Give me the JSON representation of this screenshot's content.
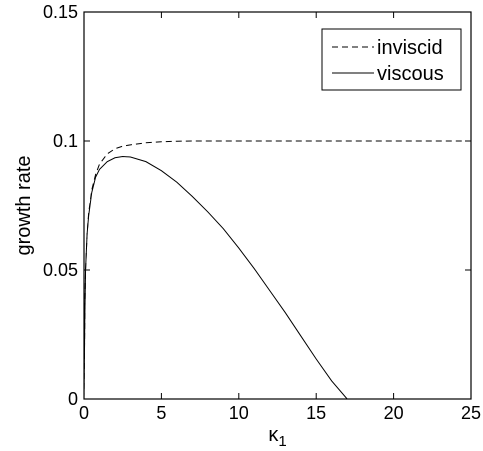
{
  "chart_data": {
    "type": "line",
    "title": "",
    "xlabel": "κ",
    "xlabel_subscript": "1",
    "ylabel": "growth rate",
    "xlim": [
      0,
      25
    ],
    "ylim": [
      0,
      0.15
    ],
    "xticks": [
      0,
      5,
      10,
      15,
      20,
      25
    ],
    "yticks": [
      0,
      0.05,
      0.1,
      0.15
    ],
    "xtick_labels": [
      "0",
      "5",
      "10",
      "15",
      "20",
      "25"
    ],
    "ytick_labels": [
      "0",
      "0.05",
      "0.1",
      "0.15"
    ],
    "grid": false,
    "legend_position": "top-right",
    "series": [
      {
        "name": "inviscid",
        "style": "dashed",
        "color": "#000000",
        "x": [
          0,
          0.05,
          0.1,
          0.2,
          0.3,
          0.5,
          0.75,
          1,
          1.5,
          2,
          2.5,
          3,
          4,
          5,
          6,
          7,
          8,
          10,
          12,
          14,
          16,
          18,
          20,
          22,
          25
        ],
        "y": [
          0,
          0.03,
          0.05,
          0.064,
          0.072,
          0.081,
          0.087,
          0.091,
          0.095,
          0.097,
          0.098,
          0.0985,
          0.0993,
          0.0997,
          0.0999,
          0.1,
          0.1,
          0.1,
          0.1,
          0.1,
          0.1,
          0.1,
          0.1,
          0.1,
          0.1
        ]
      },
      {
        "name": "viscous",
        "style": "solid",
        "color": "#000000",
        "x": [
          0,
          0.05,
          0.1,
          0.2,
          0.3,
          0.5,
          0.75,
          1,
          1.5,
          2,
          2.5,
          3,
          4,
          5,
          6,
          7,
          8,
          9,
          10,
          11,
          12,
          13,
          14,
          15,
          16,
          17,
          17.7
        ],
        "y": [
          0,
          0.03,
          0.05,
          0.064,
          0.071,
          0.08,
          0.086,
          0.089,
          0.092,
          0.0935,
          0.094,
          0.0938,
          0.092,
          0.0885,
          0.084,
          0.0785,
          0.0725,
          0.066,
          0.0585,
          0.0505,
          0.042,
          0.0335,
          0.0245,
          0.0155,
          0.007,
          0.0,
          0.0
        ]
      }
    ]
  }
}
